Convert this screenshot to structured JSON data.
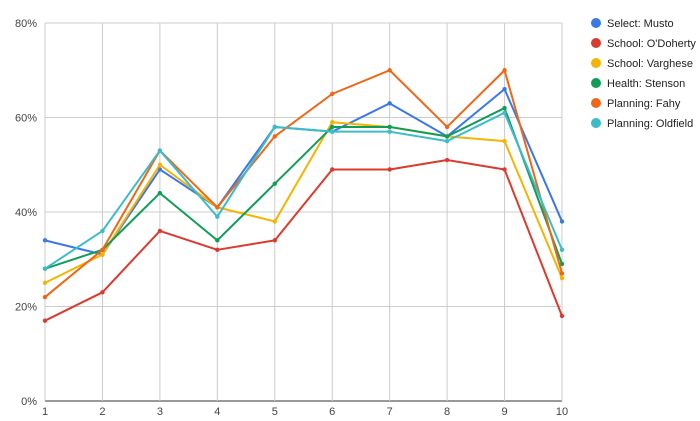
{
  "chart_data": {
    "type": "line",
    "title": "",
    "xlabel": "",
    "ylabel": "",
    "x": [
      1,
      2,
      3,
      4,
      5,
      6,
      7,
      8,
      9,
      10
    ],
    "ylim": [
      0,
      80
    ],
    "y_ticks": [
      "0%",
      "20%",
      "40%",
      "60%",
      "80%"
    ],
    "grid": true,
    "legend_position": "right",
    "series": [
      {
        "name": "Select: Musto",
        "color": "#3b78e7",
        "values": [
          34,
          31,
          49,
          41,
          58,
          57,
          63,
          56,
          66,
          38
        ]
      },
      {
        "name": "School: O'Doherty",
        "color": "#db3a2e",
        "values": [
          17,
          23,
          36,
          32,
          34,
          49,
          49,
          51,
          49,
          18
        ]
      },
      {
        "name": "School: Varghese",
        "color": "#f4b400",
        "values": [
          25,
          31,
          50,
          41,
          38,
          59,
          58,
          56,
          55,
          26
        ]
      },
      {
        "name": "Health: Stenson",
        "color": "#109d58",
        "values": [
          28,
          32,
          44,
          34,
          46,
          58,
          58,
          56,
          62,
          29
        ]
      },
      {
        "name": "Planning: Fahy",
        "color": "#ee6716",
        "values": [
          22,
          32,
          53,
          41,
          56,
          65,
          70,
          58,
          70,
          27
        ]
      },
      {
        "name": "Planning: Oldfield",
        "color": "#3bbcc9",
        "values": [
          28,
          36,
          53,
          39,
          58,
          57,
          57,
          55,
          61,
          32
        ]
      }
    ]
  }
}
